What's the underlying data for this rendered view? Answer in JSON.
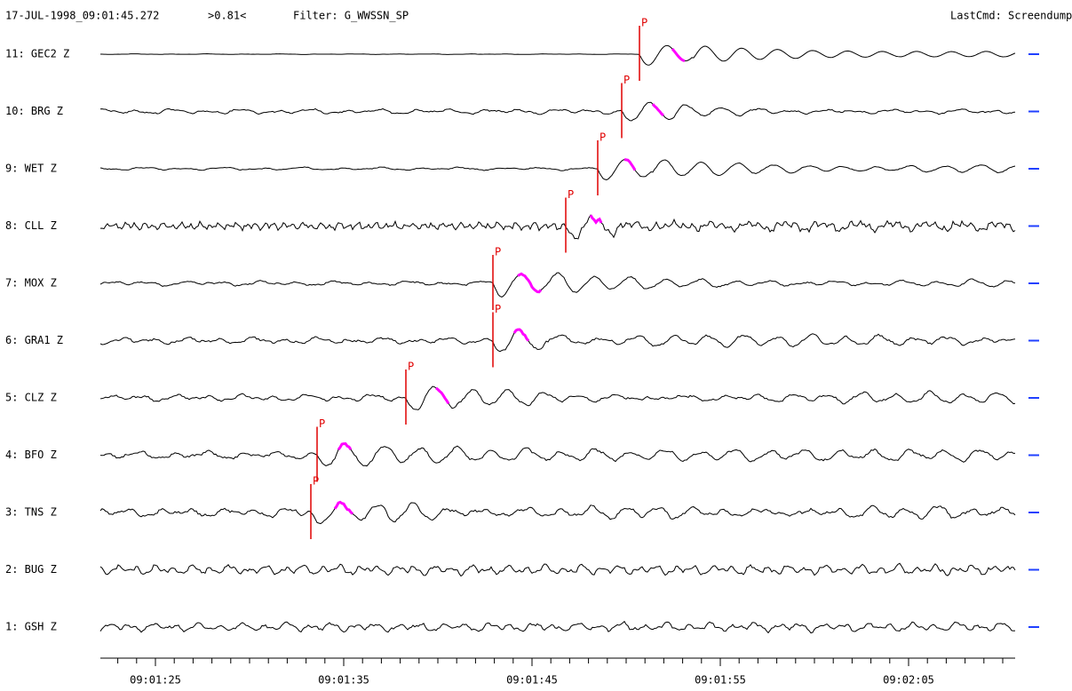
{
  "header": {
    "timestamp": "17-JUL-1998_09:01:45.272",
    "cursor": ">0.81<",
    "filter": "Filter: G_WWSSN_SP",
    "last_cmd": "LastCmd: Screendump"
  },
  "traces": [
    {
      "label": "11: GEC2 Z",
      "pick": "P"
    },
    {
      "label": "10: BRG Z",
      "pick": "P"
    },
    {
      "label": "9: WET Z",
      "pick": "P"
    },
    {
      "label": "8: CLL Z",
      "pick": "P"
    },
    {
      "label": "7: MOX Z",
      "pick": "P"
    },
    {
      "label": "6: GRA1 Z",
      "pick": "P"
    },
    {
      "label": "5: CLZ Z",
      "pick": "P"
    },
    {
      "label": "4: BFO Z",
      "pick": "P"
    },
    {
      "label": "3: TNS Z",
      "pick": "P"
    },
    {
      "label": "2: BUG Z"
    },
    {
      "label": "1: GSH Z"
    }
  ],
  "time_axis": {
    "labels": [
      "09:01:25",
      "09:01:35",
      "09:01:45",
      "09:01:55",
      "09:02:05"
    ]
  }
}
